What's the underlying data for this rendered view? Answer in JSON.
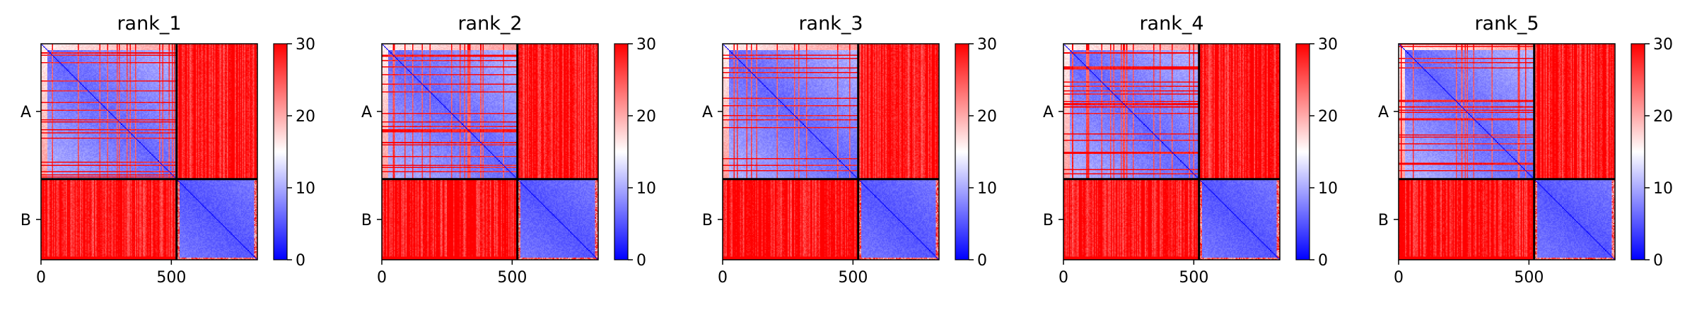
{
  "chart_data": {
    "type": "heatmap",
    "colormap": "bwr",
    "colors": {
      "low": "#0000ff",
      "mid": "#ffffff",
      "high": "#ff0000",
      "frame": "#000000"
    },
    "color_range": [
      0,
      30
    ],
    "colorbar_ticks": [
      "0",
      "10",
      "20",
      "30"
    ],
    "x_ticks": [
      "0",
      "500"
    ],
    "x_tick_values": [
      0,
      500
    ],
    "matrix_size": 830,
    "chain_break": 520,
    "chain_labels": [
      "A",
      "B"
    ],
    "panels": [
      {
        "title": "rank_1"
      },
      {
        "title": "rank_2"
      },
      {
        "title": "rank_3"
      },
      {
        "title": "rank_4"
      },
      {
        "title": "rank_5"
      }
    ]
  }
}
